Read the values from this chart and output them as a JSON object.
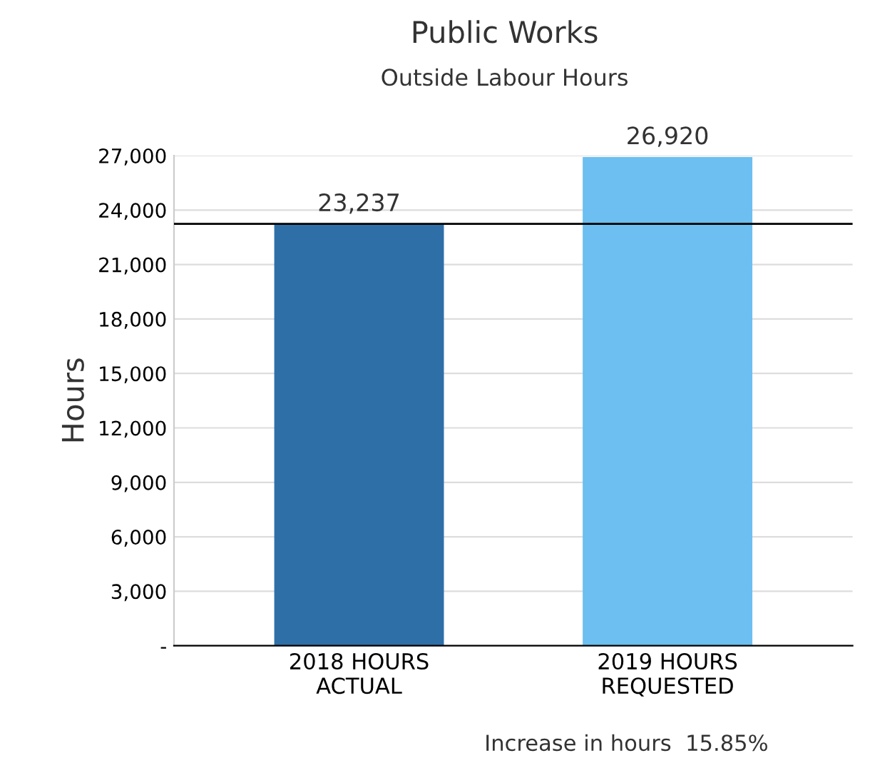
{
  "chart_data": {
    "type": "bar",
    "title": "Public Works",
    "subtitle": "Outside Labour Hours",
    "ylabel": "Hours",
    "categories": [
      "2018 HOURS\nACTUAL",
      "2019 HOURS\nREQUESTED"
    ],
    "values": [
      23237,
      26920
    ],
    "colors": [
      "#2f6fa8",
      "#6cbff0"
    ],
    "value_labels": [
      "23,237",
      "26,920"
    ],
    "ylim": [
      0,
      27000
    ],
    "yticks": [
      {
        "value": 0,
        "label": "-"
      },
      {
        "value": 3000,
        "label": "3,000"
      },
      {
        "value": 6000,
        "label": "6,000"
      },
      {
        "value": 9000,
        "label": "9,000"
      },
      {
        "value": 12000,
        "label": "12,000"
      },
      {
        "value": 15000,
        "label": "15,000"
      },
      {
        "value": 18000,
        "label": "18,000"
      },
      {
        "value": 21000,
        "label": "21,000"
      },
      {
        "value": 24000,
        "label": "24,000"
      },
      {
        "value": 27000,
        "label": "27,000"
      }
    ],
    "grid": "y",
    "ref_lines": [
      {
        "axis": "y",
        "value": 23237,
        "color": "#000000",
        "line_style": "solid"
      }
    ],
    "annotations": [
      "Increase in hours  15.85%"
    ]
  }
}
